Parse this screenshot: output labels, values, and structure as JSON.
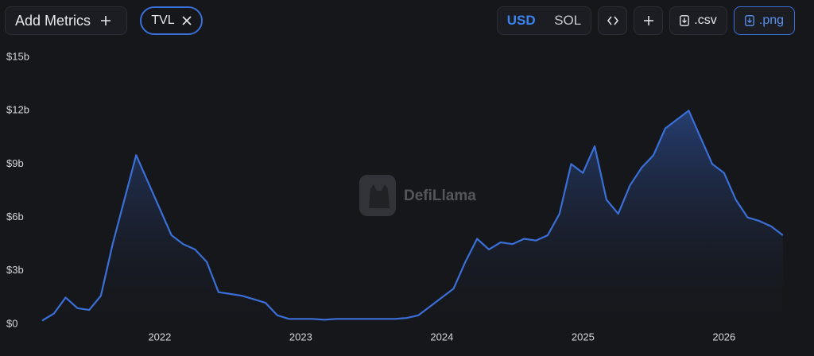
{
  "toolbar": {
    "add_metrics": "Add Metrics",
    "metric": "TVL",
    "currencies": [
      "USD",
      "SOL"
    ],
    "csv": ".csv",
    "png": ".png"
  },
  "chart_data": {
    "type": "area",
    "watermark": "DefiLlama",
    "categories": [
      null,
      null,
      null,
      null,
      null,
      null,
      null,
      null,
      null,
      null,
      "2022",
      null,
      null,
      null,
      null,
      null,
      null,
      null,
      null,
      null,
      null,
      null,
      "2023",
      null,
      null,
      null,
      null,
      null,
      null,
      null,
      null,
      null,
      null,
      null,
      "2024",
      null,
      null,
      null,
      null,
      null,
      null,
      null,
      null,
      null,
      null,
      null,
      "2025",
      null,
      null,
      null,
      null,
      null,
      null,
      null,
      null,
      null,
      null,
      null,
      "2026",
      null,
      null,
      null,
      null,
      null
    ],
    "series": [
      {
        "name": "TVL",
        "color": "#3a6fd8",
        "values": [
          0.2,
          0.6,
          1.5,
          0.9,
          0.8,
          1.6,
          4.5,
          7.0,
          9.5,
          8.0,
          6.5,
          5.0,
          4.5,
          4.2,
          3.5,
          1.8,
          1.7,
          1.6,
          1.4,
          1.2,
          0.5,
          0.3,
          0.3,
          0.3,
          0.25,
          0.3,
          0.3,
          0.3,
          0.3,
          0.3,
          0.3,
          0.35,
          0.5,
          1.0,
          1.5,
          2.0,
          3.5,
          4.8,
          4.2,
          4.6,
          4.5,
          4.8,
          4.7,
          5.0,
          6.2,
          9.0,
          8.5,
          10.0,
          7.0,
          6.2,
          7.8,
          8.8,
          9.5,
          11.0,
          11.5,
          12.0,
          10.5,
          9.0,
          8.5,
          7.0,
          6.0,
          5.8,
          5.5,
          5.0
        ]
      }
    ],
    "ylim": [
      0,
      15
    ],
    "yticks": [
      {
        "value": 0,
        "label": "$0"
      },
      {
        "value": 3,
        "label": "$3b"
      },
      {
        "value": 6,
        "label": "$6b"
      },
      {
        "value": 9,
        "label": "$9b"
      },
      {
        "value": 12,
        "label": "$12b"
      },
      {
        "value": 15,
        "label": "$15b"
      }
    ],
    "grid": false
  }
}
